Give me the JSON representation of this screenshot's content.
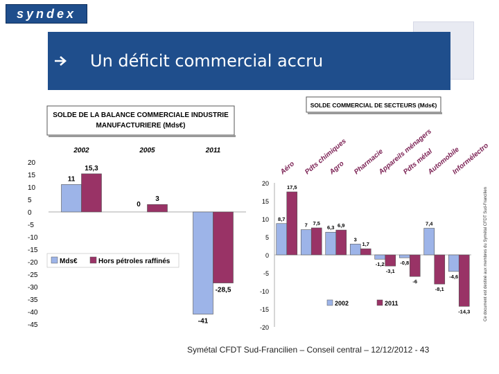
{
  "header": {
    "logo_text": "syndex",
    "title": "Un déficit commercial accru",
    "arrow_icon": "right-arrow-icon",
    "brand_color": "#1f4e8c"
  },
  "side_note": "Ce document est destiné aux membres du Symétal CFDT Sud-Francilien",
  "footer": "Symétal CFDT Sud-Francilien – Conseil central – 12/12/2012 - 43",
  "chart_data": [
    {
      "type": "bar",
      "title": "SOLDE DE LA BALANCE COMMERCIALE INDUSTRIE MANUFACTURIERE (Mds€)",
      "title_lines": [
        "SOLDE DE LA BALANCE COMMERCIALE INDUSTRIE",
        "MANUFACTURIERE (Mds€)"
      ],
      "categories": [
        "2002",
        "2005",
        "2011"
      ],
      "series": [
        {
          "name": "Mds€",
          "color": "#9db4e8",
          "values": [
            11,
            0,
            -41
          ],
          "labels": [
            "11",
            "0",
            "-41"
          ]
        },
        {
          "name": "Hors pétroles raffinés",
          "color": "#993366",
          "values": [
            15.3,
            3,
            -28.5
          ],
          "labels": [
            "15,3",
            "3",
            "-28,5"
          ]
        }
      ],
      "ylim": [
        -45,
        20
      ],
      "yticks": [
        "20",
        "15",
        "10",
        "5",
        "0",
        "-5",
        "-10",
        "-15",
        "-20",
        "-25",
        "-30",
        "-35",
        "-40",
        "-45"
      ],
      "legend_position": "middle-left"
    },
    {
      "type": "bar",
      "title": "SOLDE COMMERCIAL DE SECTEURS (Mds€)",
      "categories": [
        "Aéro",
        "Pdts chimiques",
        "Agro",
        "Pharmacie",
        "Appareils ménagers",
        "Pdts métal",
        "Automobile",
        "Informélectro"
      ],
      "series": [
        {
          "name": "2002",
          "color": "#9db4e8",
          "values": [
            8.7,
            7,
            6.3,
            3,
            -1.2,
            -0.8,
            7.4,
            -4.6
          ],
          "labels": [
            "8,7",
            "7",
            "6,3",
            "3",
            "-1,2",
            "-0,8",
            "7,4",
            "-4,6"
          ]
        },
        {
          "name": "2011",
          "color": "#993366",
          "values": [
            17.5,
            7.5,
            6.9,
            1.7,
            -3.1,
            -6,
            -8.1,
            -14.3
          ],
          "labels": [
            "17,5",
            "7,5",
            "6,9",
            "1,7",
            "-3,1",
            "-6",
            "-8,1",
            "-14,3"
          ]
        }
      ],
      "ylim": [
        -20,
        20
      ],
      "yticks": [
        "20",
        "15",
        "10",
        "5",
        "0",
        "-5",
        "-10",
        "-15",
        "-20"
      ],
      "legend_position": "bottom"
    }
  ]
}
